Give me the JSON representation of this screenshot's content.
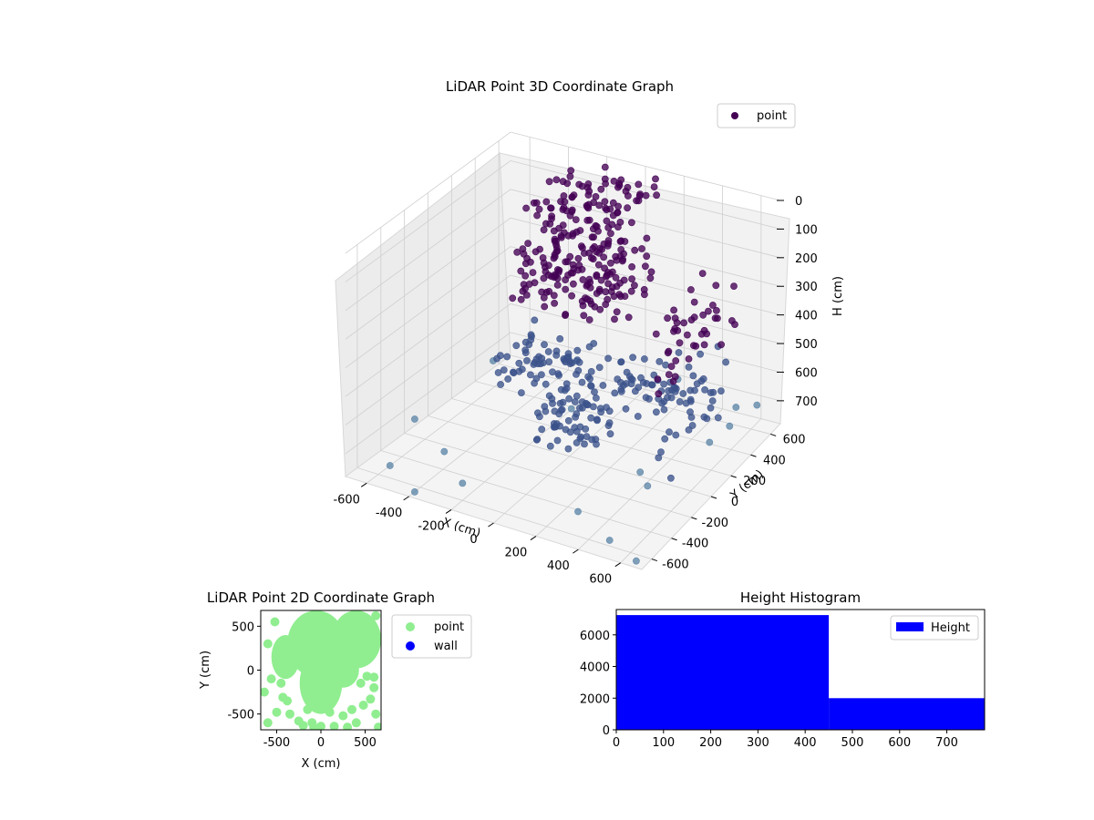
{
  "chart_data": [
    {
      "type": "scatter",
      "projection": "3d",
      "title": "LiDAR Point 3D Coordinate Graph",
      "xlabel": "X (cm)",
      "ylabel": "Y (cm)",
      "zlabel": "H (cm)",
      "xlim": [
        -700,
        700
      ],
      "ylim": [
        -700,
        700
      ],
      "zlim": [
        0,
        780
      ],
      "z_inverted": true,
      "xticks": [
        -600,
        -400,
        -200,
        0,
        200,
        400,
        600
      ],
      "yticks": [
        -600,
        -400,
        -200,
        0,
        200,
        400,
        600
      ],
      "zticks": [
        0,
        100,
        200,
        300,
        400,
        500,
        600,
        700
      ],
      "grid": true,
      "legend": {
        "placement": "top-right",
        "entries": [
          {
            "label": "point",
            "color": "#440154"
          }
        ]
      },
      "colors": {
        "near": "#440154",
        "mid": "#3b528b",
        "far": "#5e86a8"
      },
      "series": [
        {
          "name": "point",
          "description_free": true,
          "clusters": [
            {
              "x": [
                -350,
                100
              ],
              "y": [
                150,
                650
              ],
              "h": [
                0,
                120
              ],
              "count": 90
            },
            {
              "x": [
                -300,
                250
              ],
              "y": [
                -50,
                350
              ],
              "h": [
                80,
                300
              ],
              "count": 170
            },
            {
              "x": [
                -250,
                100
              ],
              "y": [
                -200,
                100
              ],
              "h": [
                380,
                520
              ],
              "count": 70
            },
            {
              "x": [
                0,
                300
              ],
              "y": [
                -350,
                -100
              ],
              "h": [
                480,
                620
              ],
              "count": 60
            },
            {
              "x": [
                100,
                550
              ],
              "y": [
                -150,
                200
              ],
              "h": [
                420,
                520
              ],
              "count": 55
            },
            {
              "x": [
                550,
                680
              ],
              "y": [
                -350,
                400
              ],
              "h": [
                50,
                650
              ],
              "count": 80
            }
          ],
          "scatter_points": [
            [
              -600,
              -500,
              780
            ],
            [
              -450,
              -300,
              760
            ],
            [
              -200,
              -600,
              720
            ],
            [
              -100,
              200,
              700
            ],
            [
              250,
              550,
              650
            ],
            [
              500,
              -600,
              760
            ],
            [
              650,
              -650,
              780
            ],
            [
              620,
              620,
              700
            ],
            [
              -550,
              300,
              650
            ],
            [
              300,
              -500,
              740
            ],
            [
              600,
              450,
              650
            ],
            [
              -400,
              -650,
              780
            ],
            [
              -650,
              -200,
              720
            ],
            [
              400,
              -100,
              720
            ],
            [
              -300,
              600,
              700
            ],
            [
              200,
              650,
              600
            ]
          ]
        }
      ]
    },
    {
      "type": "scatter",
      "title": "LiDAR Point 2D Coordinate Graph",
      "xlabel": "X (cm)",
      "ylabel": "Y (cm)",
      "xlim": [
        -680,
        680
      ],
      "ylim": [
        -680,
        680
      ],
      "xticks": [
        -500,
        0,
        500
      ],
      "yticks": [
        -500,
        0,
        500
      ],
      "legend": {
        "placement": "outside-right",
        "entries": [
          {
            "label": "point",
            "color": "#90ee90"
          },
          {
            "label": "wall",
            "color": "#0000ff"
          }
        ]
      },
      "series": [
        {
          "name": "point",
          "color": "#90ee90",
          "blobs": [
            {
              "cx": -50,
              "cy": 300,
              "rx": 330,
              "ry": 380
            },
            {
              "cx": 0,
              "cy": -150,
              "rx": 240,
              "ry": 350
            },
            {
              "cx": 400,
              "cy": 350,
              "rx": 280,
              "ry": 330
            },
            {
              "cx": -400,
              "cy": 150,
              "rx": 160,
              "ry": 250
            },
            {
              "cx": 250,
              "cy": 0,
              "rx": 180,
              "ry": 200
            }
          ],
          "points": [
            [
              -640,
              -250
            ],
            [
              -560,
              -100
            ],
            [
              -500,
              -480
            ],
            [
              -600,
              -600
            ],
            [
              -430,
              -310
            ],
            [
              -350,
              -500
            ],
            [
              -250,
              -580
            ],
            [
              -200,
              -630
            ],
            [
              -450,
              -150
            ],
            [
              -380,
              -350
            ],
            [
              450,
              -150
            ],
            [
              520,
              -70
            ],
            [
              600,
              -200
            ],
            [
              480,
              -400
            ],
            [
              560,
              -330
            ],
            [
              620,
              -500
            ],
            [
              400,
              -600
            ],
            [
              350,
              -450
            ],
            [
              250,
              -520
            ],
            [
              150,
              -640
            ],
            [
              650,
              -650
            ],
            [
              600,
              -80
            ],
            [
              -150,
              -450
            ],
            [
              -100,
              -600
            ],
            [
              0,
              -640
            ],
            [
              100,
              -480
            ],
            [
              -520,
              550
            ],
            [
              620,
              620
            ],
            [
              -600,
              300
            ],
            [
              640,
              350
            ],
            [
              -80,
              -650
            ],
            [
              300,
              -650
            ]
          ]
        },
        {
          "name": "wall",
          "color": "#0000ff",
          "points": []
        }
      ]
    },
    {
      "type": "bar",
      "histogram": true,
      "title": "Height Histogram",
      "xlabel": "",
      "ylabel": "",
      "xlim": [
        0,
        780
      ],
      "ylim": [
        0,
        7600
      ],
      "xticks": [
        0,
        100,
        200,
        300,
        400,
        500,
        600,
        700
      ],
      "yticks": [
        0,
        2000,
        4000,
        6000
      ],
      "legend": {
        "placement": "top-right",
        "entries": [
          {
            "label": "Height",
            "color": "#0000ff"
          }
        ]
      },
      "bins": [
        {
          "from": 0,
          "to": 450,
          "count": 7250
        },
        {
          "from": 450,
          "to": 780,
          "count": 2000
        }
      ],
      "color": "#0000ff"
    }
  ]
}
